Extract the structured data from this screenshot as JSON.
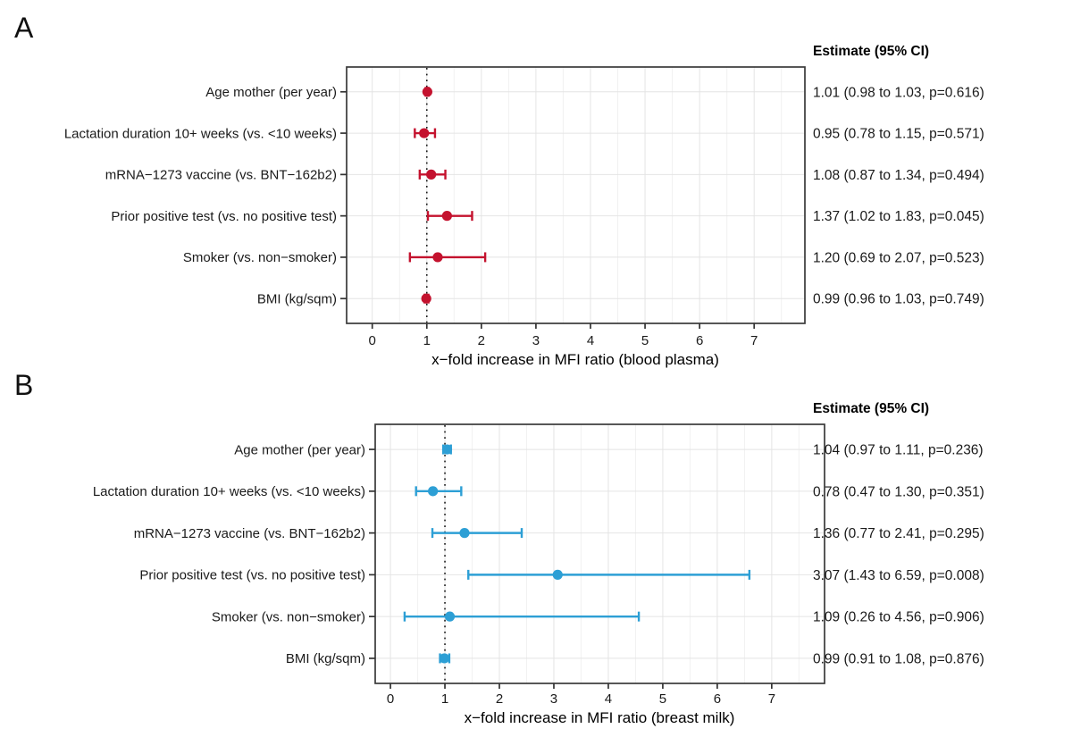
{
  "colors": {
    "panel_a_marker": "#C4122E",
    "panel_b_marker": "#2D9FD5",
    "reference_line": "#1A1A1A",
    "grid_major": "#E4E4E4",
    "grid_minor": "#F1F1F1",
    "frame_border": "#3A3A3A",
    "axis_tick": "#333333",
    "text": "#000000"
  },
  "chart_data": [
    {
      "type": "scatter",
      "subtype": "forest-plot",
      "panel_label": "A",
      "column_header": "Estimate (95% CI)",
      "xlabel": "x−fold increase in MFI ratio (blood plasma)",
      "x_ticks": [
        0,
        1,
        2,
        3,
        4,
        5,
        6,
        7
      ],
      "xlim": [
        -0.47,
        7.93
      ],
      "reference_line_x": 1,
      "grid": true,
      "marker": "circle",
      "marker_color": "#C4122E",
      "categories": [
        "Age mother (per year)",
        "Lactation duration 10+ weeks (vs. <10 weeks)",
        "mRNA−1273 vaccine (vs. BNT−162b2)",
        "Prior positive test (vs. no positive test)",
        "Smoker (vs. non−smoker)",
        "BMI (kg/sqm)"
      ],
      "estimates": [
        1.01,
        0.95,
        1.08,
        1.37,
        1.2,
        0.99
      ],
      "ci_low": [
        0.98,
        0.78,
        0.87,
        1.02,
        0.69,
        0.96
      ],
      "ci_high": [
        1.03,
        1.15,
        1.34,
        1.83,
        2.07,
        1.03
      ],
      "estimate_labels": [
        "1.01 (0.98 to 1.03, p=0.616)",
        "0.95 (0.78 to 1.15, p=0.571)",
        "1.08 (0.87 to 1.34, p=0.494)",
        "1.37 (1.02 to 1.83, p=0.045)",
        "1.20 (0.69 to 2.07, p=0.523)",
        "0.99 (0.96 to 1.03, p=0.749)"
      ]
    },
    {
      "type": "scatter",
      "subtype": "forest-plot",
      "panel_label": "B",
      "column_header": "Estimate (95% CI)",
      "xlabel": "x−fold increase in MFI ratio (breast milk)",
      "x_ticks": [
        0,
        1,
        2,
        3,
        4,
        5,
        6,
        7
      ],
      "xlim": [
        -0.28,
        7.97
      ],
      "reference_line_x": 1,
      "grid": true,
      "marker": "circle",
      "marker_color": "#2D9FD5",
      "categories": [
        "Age mother (per year)",
        "Lactation duration 10+ weeks (vs. <10 weeks)",
        "mRNA−1273 vaccine (vs. BNT−162b2)",
        "Prior positive test (vs. no positive test)",
        "Smoker (vs. non−smoker)",
        "BMI (kg/sqm)"
      ],
      "estimates": [
        1.04,
        0.78,
        1.36,
        3.07,
        1.09,
        0.99
      ],
      "ci_low": [
        0.97,
        0.47,
        0.77,
        1.43,
        0.26,
        0.91
      ],
      "ci_high": [
        1.11,
        1.3,
        2.41,
        6.59,
        4.56,
        1.08
      ],
      "estimate_labels": [
        "1.04 (0.97 to 1.11, p=0.236)",
        "0.78 (0.47 to 1.30, p=0.351)",
        "1.36 (0.77 to 2.41, p=0.295)",
        "3.07 (1.43 to 6.59, p=0.008)",
        "1.09 (0.26 to 4.56, p=0.906)",
        "0.99 (0.91 to 1.08, p=0.876)"
      ]
    }
  ]
}
